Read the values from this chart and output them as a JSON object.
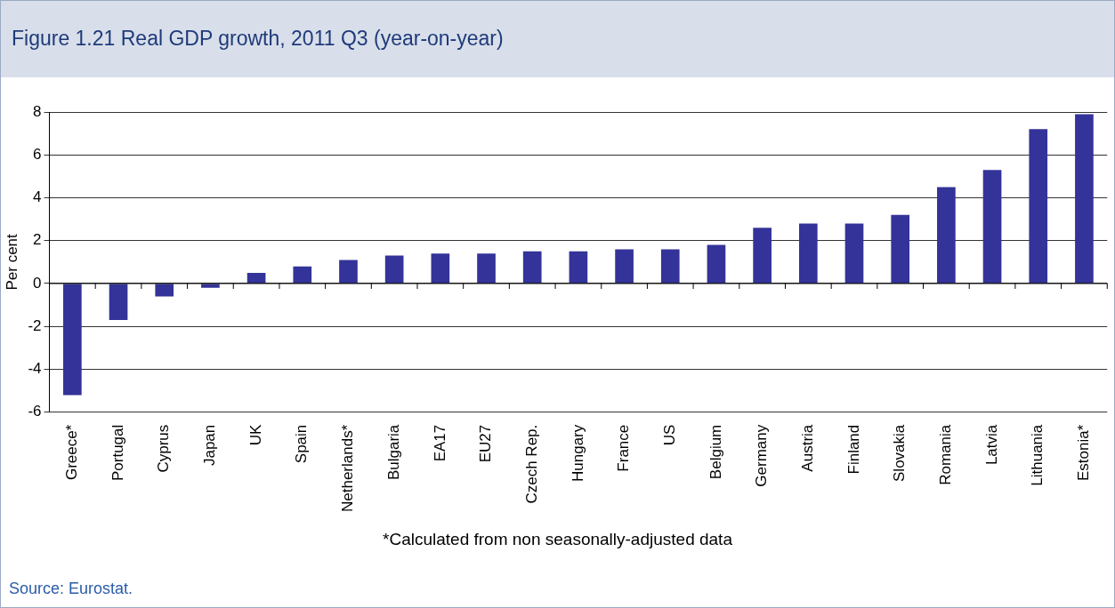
{
  "chart_data": {
    "type": "bar",
    "title": "Figure 1.21 Real GDP growth, 2011 Q3 (year-on-year)",
    "ylabel": "Per cent",
    "categories": [
      "Greece*",
      "Portugal",
      "Cyprus",
      "Japan",
      "UK",
      "Spain",
      "Netherlands*",
      "Bulgaria",
      "EA17",
      "EU27",
      "Czech Rep.",
      "Hungary",
      "France",
      "US",
      "Belgium",
      "Germany",
      "Austria",
      "Finland",
      "Slovakia",
      "Romania",
      "Latvia",
      "Lithuania",
      "Estonia*"
    ],
    "values": [
      -5.2,
      -1.7,
      -0.6,
      -0.2,
      0.5,
      0.8,
      1.1,
      1.3,
      1.4,
      1.4,
      1.5,
      1.5,
      1.6,
      1.6,
      1.8,
      2.6,
      2.8,
      2.8,
      3.2,
      4.5,
      5.3,
      7.2,
      7.9
    ],
    "color": "#333399",
    "ylim": [
      -6,
      8
    ],
    "yticks": [
      -6,
      -4,
      -2,
      0,
      2,
      4,
      6,
      8
    ],
    "grid": "y",
    "legend": false,
    "annotations": [
      "*Calculated from non seasonally-adjusted data",
      "Source: Eurostat."
    ]
  }
}
